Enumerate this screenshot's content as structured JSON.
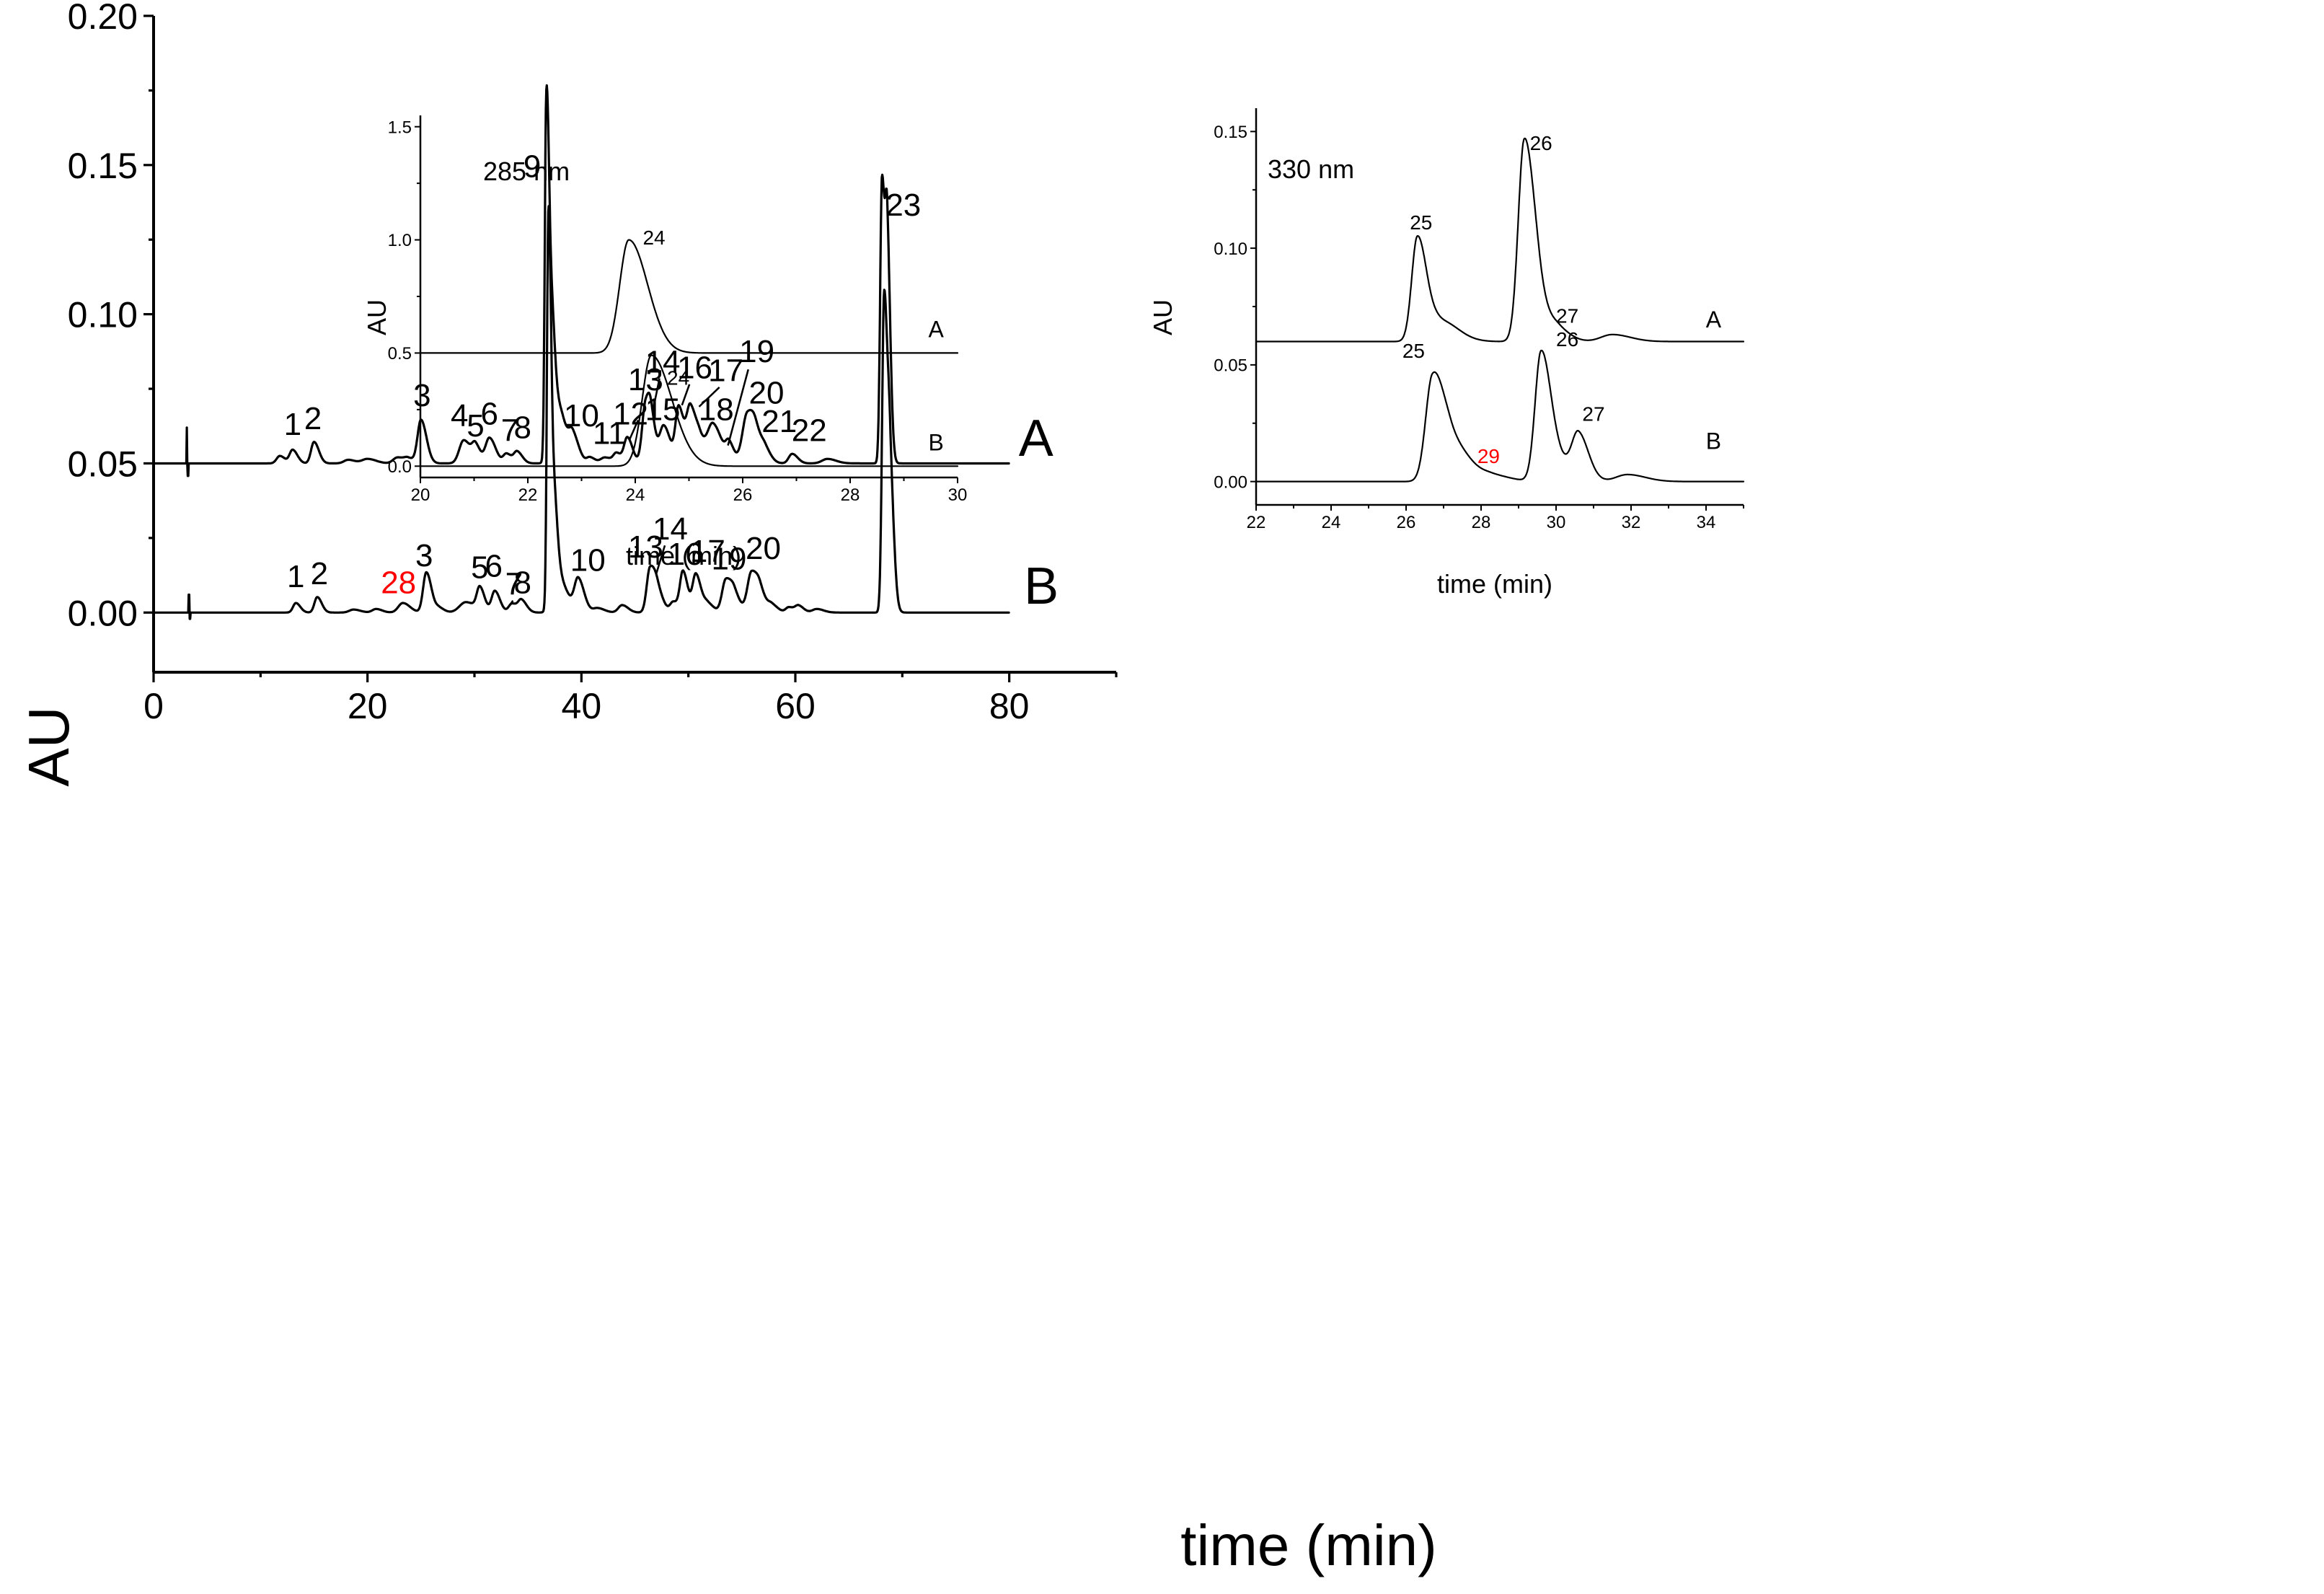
{
  "chart_data": [
    {
      "id": "main",
      "type": "line",
      "title": "",
      "xlabel": "time (min)",
      "ylabel": "AU",
      "xlim": [
        0,
        90
      ],
      "ylim": [
        -0.02,
        0.2
      ],
      "x_ticks": [
        0,
        20,
        40,
        60,
        80
      ],
      "x_tick_labels": [
        "0",
        "20",
        "40",
        "60",
        "80"
      ],
      "y_ticks": [
        0.0,
        0.05,
        0.1,
        0.15,
        0.2
      ],
      "y_tick_labels": [
        "0.00",
        "0.05",
        "0.10",
        "0.15",
        "0.20"
      ],
      "grid": false,
      "series": [
        {
          "name": "A",
          "label": "A",
          "baseline": 0.05,
          "x_start": 0,
          "x_end": 80,
          "artifact": {
            "x": 3.1,
            "height": 0.012
          },
          "peaks": [
            [
              11.8,
              0.0025,
              0.3
            ],
            [
              13.0,
              0.0045,
              0.28
            ],
            [
              15.0,
              0.0072,
              0.28
            ],
            [
              18.2,
              0.0012,
              0.4
            ],
            [
              20.0,
              0.0015,
              0.5
            ],
            [
              22.8,
              0.002,
              0.4
            ],
            [
              23.8,
              0.0015,
              0.35
            ],
            [
              25.0,
              0.0145,
              0.32
            ],
            [
              29.0,
              0.0078,
              0.42
            ],
            [
              30.1,
              0.0052,
              0.3
            ],
            [
              31.4,
              0.0085,
              0.36
            ],
            [
              33.0,
              0.0032,
              0.3
            ],
            [
              34.0,
              0.0038,
              0.3
            ],
            [
              36.7,
              0.107,
              0.13
            ],
            [
              37.05,
              0.05,
              0.22
            ],
            [
              37.6,
              0.018,
              0.45
            ],
            [
              38.3,
              0.004,
              0.4
            ],
            [
              39.2,
              0.0085,
              0.36
            ],
            [
              40.8,
              0.002,
              0.3
            ],
            [
              42.2,
              0.002,
              0.4
            ],
            [
              43.3,
              0.0032,
              0.3
            ],
            [
              44.3,
              0.0085,
              0.3
            ],
            [
              46.0,
              0.0198,
              0.32
            ],
            [
              46.5,
              0.009,
              0.28
            ],
            [
              47.7,
              0.0125,
              0.38
            ],
            [
              49.1,
              0.0185,
              0.3
            ],
            [
              50.2,
              0.0185,
              0.35
            ],
            [
              51.1,
              0.0055,
              0.35
            ],
            [
              52.3,
              0.013,
              0.5
            ],
            [
              53.8,
              0.0058,
              0.3
            ],
            [
              55.5,
              0.0165,
              0.45
            ],
            [
              56.3,
              0.006,
              0.4
            ],
            [
              57.2,
              0.0035,
              0.35
            ],
            [
              59.7,
              0.0032,
              0.32
            ],
            [
              63.0,
              0.0015,
              0.5
            ],
            [
              68.1,
              0.095,
              0.17
            ],
            [
              68.6,
              0.07,
              0.18
            ]
          ],
          "peak_labels": [
            {
              "text": "1",
              "x": 13.0,
              "y": 0.0595
            },
            {
              "text": "2",
              "x": 14.9,
              "y": 0.0615
            },
            {
              "text": "3",
              "x": 25.1,
              "y": 0.0692
            },
            {
              "text": "4",
              "x": 28.6,
              "y": 0.0625
            },
            {
              "text": "5",
              "x": 30.1,
              "y": 0.059
            },
            {
              "text": "6",
              "x": 31.4,
              "y": 0.063
            },
            {
              "text": "7",
              "x": 33.3,
              "y": 0.0575
            },
            {
              "text": "8",
              "x": 34.5,
              "y": 0.0585
            },
            {
              "text": "9",
              "x": 35.4,
              "y": 0.146
            },
            {
              "text": "10",
              "x": 40.0,
              "y": 0.0625
            },
            {
              "text": "11",
              "x": 42.6,
              "y": 0.0565
            },
            {
              "text": "12",
              "x": 44.6,
              "y": 0.063
            },
            {
              "text": "13",
              "x": 46.0,
              "y": 0.0745
            },
            {
              "text": "14",
              "x": 47.6,
              "y": 0.0805
            },
            {
              "text": "15",
              "x": 47.6,
              "y": 0.0645
            },
            {
              "text": "16",
              "x": 50.6,
              "y": 0.0785
            },
            {
              "text": "17",
              "x": 53.5,
              "y": 0.0775
            },
            {
              "text": "18",
              "x": 52.6,
              "y": 0.0645
            },
            {
              "text": "19",
              "x": 56.4,
              "y": 0.084
            },
            {
              "text": "20",
              "x": 57.3,
              "y": 0.07
            },
            {
              "text": "21",
              "x": 58.5,
              "y": 0.0605
            },
            {
              "text": "22",
              "x": 61.3,
              "y": 0.0575
            },
            {
              "text": "23",
              "x": 70.1,
              "y": 0.133
            }
          ],
          "leader_lines": [
            {
              "x1": 47.3,
              "y1": 0.0785,
              "x2": 46.7,
              "y2": 0.068
            },
            {
              "x1": 50.1,
              "y1": 0.0765,
              "x2": 49.4,
              "y2": 0.0695
            },
            {
              "x1": 52.9,
              "y1": 0.0755,
              "x2": 51.0,
              "y2": 0.069
            },
            {
              "x1": 55.6,
              "y1": 0.0815,
              "x2": 53.7,
              "y2": 0.056
            },
            {
              "x1": 45.3,
              "y1": 0.0645,
              "x2": 44.5,
              "y2": 0.058
            }
          ]
        },
        {
          "name": "B",
          "label": "B",
          "baseline": 0.0,
          "x_start": 0,
          "x_end": 80,
          "artifact": {
            "x": 3.3,
            "height": 0.006
          },
          "peaks": [
            [
              13.3,
              0.0032,
              0.26
            ],
            [
              15.3,
              0.0052,
              0.26
            ],
            [
              18.7,
              0.001,
              0.4
            ],
            [
              20.8,
              0.0012,
              0.35
            ],
            [
              23.3,
              0.0032,
              0.42
            ],
            [
              25.5,
              0.0135,
              0.3
            ],
            [
              26.7,
              0.0015,
              0.3
            ],
            [
              29.2,
              0.0035,
              0.6
            ],
            [
              30.5,
              0.0075,
              0.28
            ],
            [
              31.9,
              0.0072,
              0.3
            ],
            [
              33.5,
              0.003,
              0.3
            ],
            [
              34.4,
              0.004,
              0.3
            ],
            [
              36.9,
              0.118,
              0.13
            ],
            [
              37.25,
              0.043,
              0.24
            ],
            [
              37.9,
              0.011,
              0.5
            ],
            [
              39.7,
              0.011,
              0.35
            ],
            [
              41.5,
              0.0015,
              0.4
            ],
            [
              43.8,
              0.0025,
              0.35
            ],
            [
              46.4,
              0.0145,
              0.3
            ],
            [
              47.1,
              0.0065,
              0.35
            ],
            [
              48.6,
              0.0035,
              0.3
            ],
            [
              49.5,
              0.0135,
              0.28
            ],
            [
              50.7,
              0.0128,
              0.3
            ],
            [
              51.8,
              0.003,
              0.35
            ],
            [
              53.5,
              0.011,
              0.35
            ],
            [
              54.3,
              0.005,
              0.35
            ],
            [
              55.9,
              0.0135,
              0.38
            ],
            [
              56.7,
              0.005,
              0.35
            ],
            [
              57.8,
              0.0025,
              0.35
            ],
            [
              59.4,
              0.0018,
              0.3
            ],
            [
              60.3,
              0.0022,
              0.3
            ],
            [
              62.0,
              0.0012,
              0.4
            ],
            [
              68.3,
              0.106,
              0.19
            ],
            [
              68.85,
              0.045,
              0.22
            ]
          ],
          "peak_labels": [
            {
              "text": "1",
              "x": 13.3,
              "y": 0.0085,
              "color": "#000000"
            },
            {
              "text": "2",
              "x": 15.5,
              "y": 0.0095,
              "color": "#000000"
            },
            {
              "text": "28",
              "x": 22.9,
              "y": 0.0065,
              "color": "#ff0000"
            },
            {
              "text": "3",
              "x": 25.3,
              "y": 0.0155,
              "color": "#000000"
            },
            {
              "text": "5",
              "x": 30.5,
              "y": 0.0115,
              "color": "#000000"
            },
            {
              "text": "6",
              "x": 31.8,
              "y": 0.012,
              "color": "#000000"
            },
            {
              "text": "7",
              "x": 33.7,
              "y": 0.006,
              "color": "#000000"
            },
            {
              "text": "8",
              "x": 34.5,
              "y": 0.0065,
              "color": "#000000"
            },
            {
              "text": "10",
              "x": 40.6,
              "y": 0.014,
              "color": "#000000"
            },
            {
              "text": "13",
              "x": 46.0,
              "y": 0.0185,
              "color": "#000000"
            },
            {
              "text": "14",
              "x": 48.3,
              "y": 0.0245,
              "color": "#000000"
            },
            {
              "text": "16",
              "x": 49.7,
              "y": 0.016,
              "color": "#000000"
            },
            {
              "text": "17",
              "x": 51.8,
              "y": 0.017,
              "color": "#000000"
            },
            {
              "text": "19",
              "x": 53.8,
              "y": 0.0145,
              "color": "#000000"
            },
            {
              "text": "20",
              "x": 57.0,
              "y": 0.018,
              "color": "#000000"
            }
          ],
          "leader_lines": [
            {
              "x1": 47.8,
              "y1": 0.0225,
              "x2": 47.0,
              "y2": 0.013
            },
            {
              "x1": 33.6,
              "y1": 0.004,
              "x2": 33.2,
              "y2": 0.002
            }
          ]
        }
      ],
      "trace_labels": [
        {
          "text": "A",
          "x": 82.5,
          "y": 0.0525
        },
        {
          "text": "B",
          "x": 83.0,
          "y": 0.003
        }
      ]
    },
    {
      "id": "inset-285",
      "type": "line",
      "title": "285 nm",
      "xlabel": "time (min)",
      "ylabel": "AU",
      "xlim": [
        20,
        30
      ],
      "ylim": [
        -0.05,
        1.55
      ],
      "x_ticks": [
        20,
        22,
        24,
        26,
        28,
        30
      ],
      "x_tick_labels": [
        "20",
        "22",
        "24",
        "26",
        "28",
        "30"
      ],
      "y_ticks": [
        0.0,
        0.5,
        1.0,
        1.5
      ],
      "y_tick_labels": [
        "0.0",
        "0.5",
        "1.0",
        "1.5"
      ],
      "grid": false,
      "series": [
        {
          "name": "A",
          "label": "A",
          "baseline": 0.5,
          "x_start": 20,
          "x_end": 30,
          "peaks": [
            [
              23.88,
              0.5,
              0.17,
              0.35
            ]
          ],
          "peak_labels": [
            {
              "text": "24",
              "x": 24.35,
              "y": 0.98
            }
          ]
        },
        {
          "name": "B",
          "label": "B",
          "baseline": 0.0,
          "x_start": 20,
          "x_end": 30,
          "peaks": [
            [
              24.3,
              0.49,
              0.17,
              0.38
            ]
          ],
          "peak_labels": [
            {
              "text": "24",
              "x": 24.8,
              "y": 0.36
            }
          ]
        }
      ],
      "trace_labels": [
        {
          "text": "A",
          "x": 29.6,
          "y": 0.57
        },
        {
          "text": "B",
          "x": 29.6,
          "y": 0.07
        }
      ]
    },
    {
      "id": "inset-330",
      "type": "line",
      "title": "330 nm",
      "xlabel": "time (min)",
      "ylabel": "AU",
      "xlim": [
        22,
        35
      ],
      "ylim": [
        -0.01,
        0.16
      ],
      "x_ticks": [
        22,
        24,
        26,
        28,
        30,
        32,
        34
      ],
      "x_tick_labels": [
        "22",
        "24",
        "26",
        "28",
        "30",
        "32",
        "34"
      ],
      "y_ticks": [
        0.0,
        0.05,
        0.1,
        0.15
      ],
      "y_tick_labels": [
        "0.00",
        "0.05",
        "0.10",
        "0.15"
      ],
      "grid": false,
      "series": [
        {
          "name": "A",
          "label": "A",
          "baseline": 0.06,
          "x_start": 22,
          "x_end": 35,
          "peaks": [
            [
              26.3,
              0.044,
              0.15
            ],
            [
              26.9,
              0.009,
              0.3
            ],
            [
              29.15,
              0.085,
              0.16
            ],
            [
              29.55,
              0.014,
              0.2
            ],
            [
              30.1,
              0.004,
              0.2
            ],
            [
              31.5,
              0.003,
              0.3
            ]
          ],
          "peak_labels": [
            {
              "text": "25",
              "x": 26.4,
              "y": 0.108
            },
            {
              "text": "26",
              "x": 29.6,
              "y": 0.142
            },
            {
              "text": "27",
              "x": 30.3,
              "y": 0.068
            }
          ]
        },
        {
          "name": "B",
          "label": "B",
          "baseline": 0.0,
          "x_start": 22,
          "x_end": 35,
          "peaks": [
            [
              26.7,
              0.042,
              0.18
            ],
            [
              27.2,
              0.017,
              0.3
            ],
            [
              28.3,
              0.0025,
              0.3
            ],
            [
              29.6,
              0.055,
              0.16
            ],
            [
              30.1,
              0.008,
              0.25
            ],
            [
              30.6,
              0.018,
              0.17
            ],
            [
              31.9,
              0.003,
              0.3
            ]
          ],
          "peak_labels": [
            {
              "text": "25",
              "x": 26.2,
              "y": 0.053,
              "color": "#000000"
            },
            {
              "text": "26",
              "x": 30.3,
              "y": 0.058,
              "color": "#000000"
            },
            {
              "text": "27",
              "x": 31.0,
              "y": 0.026,
              "color": "#000000"
            },
            {
              "text": "29",
              "x": 28.2,
              "y": 0.008,
              "color": "#ff0000"
            }
          ]
        }
      ],
      "trace_labels": [
        {
          "text": "A",
          "x": 34.2,
          "y": 0.066
        },
        {
          "text": "B",
          "x": 34.2,
          "y": 0.014
        }
      ]
    }
  ]
}
